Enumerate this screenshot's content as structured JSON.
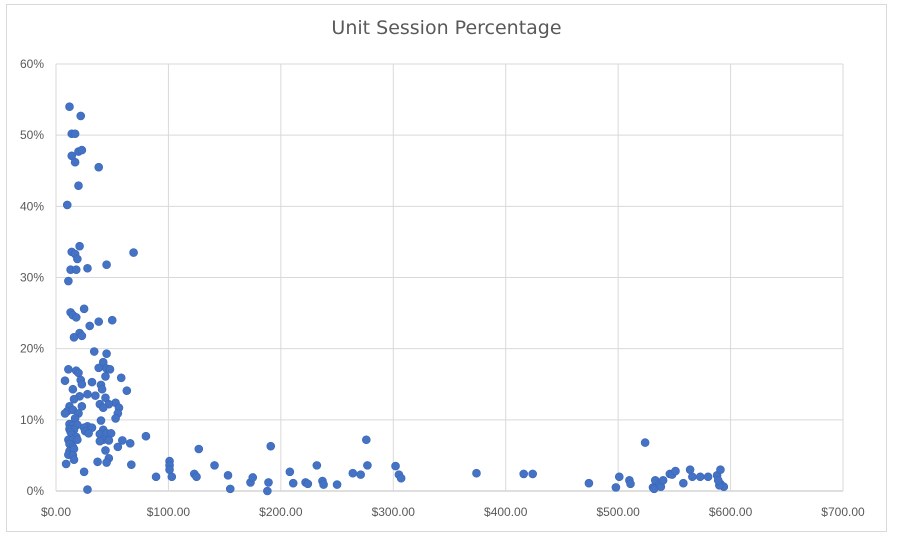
{
  "chart_data": {
    "type": "scatter",
    "title": "Unit Session Percentage",
    "xlabel": "",
    "ylabel": "",
    "xlim": [
      0,
      700
    ],
    "ylim": [
      0,
      0.6
    ],
    "x_ticks": [
      "$0.00",
      "$100.00",
      "$200.00",
      "$300.00",
      "$400.00",
      "$500.00",
      "$600.00",
      "$700.00"
    ],
    "y_ticks": [
      "0%",
      "10%",
      "20%",
      "30%",
      "40%",
      "50%",
      "60%"
    ],
    "grid": true,
    "legend": "none",
    "marker_color": "#4472c4",
    "points": [
      [
        12,
        0.54
      ],
      [
        22,
        0.527
      ],
      [
        14,
        0.502
      ],
      [
        17,
        0.502
      ],
      [
        20,
        0.477
      ],
      [
        23,
        0.479
      ],
      [
        14,
        0.471
      ],
      [
        17,
        0.462
      ],
      [
        38,
        0.455
      ],
      [
        20,
        0.429
      ],
      [
        10,
        0.402
      ],
      [
        21,
        0.344
      ],
      [
        14,
        0.336
      ],
      [
        17,
        0.333
      ],
      [
        69,
        0.335
      ],
      [
        19,
        0.326
      ],
      [
        13,
        0.311
      ],
      [
        18,
        0.311
      ],
      [
        28,
        0.313
      ],
      [
        45,
        0.318
      ],
      [
        11,
        0.295
      ],
      [
        25,
        0.256
      ],
      [
        13,
        0.251
      ],
      [
        15,
        0.247
      ],
      [
        18,
        0.244
      ],
      [
        30,
        0.232
      ],
      [
        38,
        0.238
      ],
      [
        50,
        0.24
      ],
      [
        21,
        0.222
      ],
      [
        16,
        0.216
      ],
      [
        23,
        0.218
      ],
      [
        34,
        0.196
      ],
      [
        45,
        0.193
      ],
      [
        42,
        0.181
      ],
      [
        38,
        0.173
      ],
      [
        45,
        0.172
      ],
      [
        48,
        0.171
      ],
      [
        11,
        0.171
      ],
      [
        18,
        0.169
      ],
      [
        20,
        0.166
      ],
      [
        44,
        0.161
      ],
      [
        58,
        0.159
      ],
      [
        8,
        0.155
      ],
      [
        22,
        0.156
      ],
      [
        32,
        0.153
      ],
      [
        23,
        0.15
      ],
      [
        40,
        0.149
      ],
      [
        63,
        0.141
      ],
      [
        15,
        0.143
      ],
      [
        41,
        0.143
      ],
      [
        28,
        0.136
      ],
      [
        21,
        0.133
      ],
      [
        35,
        0.134
      ],
      [
        44,
        0.131
      ],
      [
        16,
        0.129
      ],
      [
        53,
        0.124
      ],
      [
        39,
        0.122
      ],
      [
        47,
        0.122
      ],
      [
        56,
        0.117
      ],
      [
        12,
        0.119
      ],
      [
        23,
        0.119
      ],
      [
        42,
        0.117
      ],
      [
        10,
        0.112
      ],
      [
        15,
        0.114
      ],
      [
        20,
        0.109
      ],
      [
        8,
        0.109
      ],
      [
        55,
        0.109
      ],
      [
        53,
        0.102
      ],
      [
        17,
        0.102
      ],
      [
        40,
        0.099
      ],
      [
        12,
        0.094
      ],
      [
        15,
        0.092
      ],
      [
        19,
        0.093
      ],
      [
        28,
        0.091
      ],
      [
        25,
        0.089
      ],
      [
        32,
        0.089
      ],
      [
        12,
        0.087
      ],
      [
        16,
        0.086
      ],
      [
        26,
        0.084
      ],
      [
        42,
        0.086
      ],
      [
        13,
        0.083
      ],
      [
        29,
        0.081
      ],
      [
        39,
        0.08
      ],
      [
        45,
        0.081
      ],
      [
        49,
        0.081
      ],
      [
        14,
        0.079
      ],
      [
        18,
        0.076
      ],
      [
        80,
        0.077
      ],
      [
        11,
        0.072
      ],
      [
        15,
        0.072
      ],
      [
        19,
        0.072
      ],
      [
        42,
        0.072
      ],
      [
        39,
        0.07
      ],
      [
        47,
        0.071
      ],
      [
        59,
        0.071
      ],
      [
        66,
        0.067
      ],
      [
        12,
        0.066
      ],
      [
        15,
        0.062
      ],
      [
        44,
        0.057
      ],
      [
        55,
        0.062
      ],
      [
        12,
        0.056
      ],
      [
        16,
        0.059
      ],
      [
        11,
        0.051
      ],
      [
        15,
        0.05
      ],
      [
        47,
        0.046
      ],
      [
        16,
        0.044
      ],
      [
        9,
        0.038
      ],
      [
        37,
        0.041
      ],
      [
        45,
        0.04
      ],
      [
        67,
        0.037
      ],
      [
        25,
        0.027
      ],
      [
        28,
        0.002
      ],
      [
        101,
        0.042
      ],
      [
        101,
        0.036
      ],
      [
        101,
        0.03
      ],
      [
        103,
        0.02
      ],
      [
        89,
        0.02
      ],
      [
        123,
        0.024
      ],
      [
        125,
        0.02
      ],
      [
        127,
        0.059
      ],
      [
        141,
        0.036
      ],
      [
        153,
        0.022
      ],
      [
        155,
        0.003
      ],
      [
        173,
        0.012
      ],
      [
        175,
        0.019
      ],
      [
        188,
        0.0
      ],
      [
        189,
        0.012
      ],
      [
        191,
        0.063
      ],
      [
        208,
        0.027
      ],
      [
        211,
        0.011
      ],
      [
        222,
        0.012
      ],
      [
        224,
        0.01
      ],
      [
        232,
        0.036
      ],
      [
        237,
        0.014
      ],
      [
        238,
        0.009
      ],
      [
        250,
        0.009
      ],
      [
        264,
        0.025
      ],
      [
        271,
        0.023
      ],
      [
        276,
        0.072
      ],
      [
        277,
        0.036
      ],
      [
        302,
        0.035
      ],
      [
        305,
        0.023
      ],
      [
        307,
        0.018
      ],
      [
        374,
        0.025
      ],
      [
        416,
        0.024
      ],
      [
        424,
        0.024
      ],
      [
        474,
        0.011
      ],
      [
        498,
        0.005
      ],
      [
        501,
        0.02
      ],
      [
        510,
        0.015
      ],
      [
        511,
        0.01
      ],
      [
        524,
        0.068
      ],
      [
        531,
        0.005
      ],
      [
        532,
        0.003
      ],
      [
        533,
        0.015
      ],
      [
        537,
        0.01
      ],
      [
        538,
        0.006
      ],
      [
        540,
        0.015
      ],
      [
        546,
        0.024
      ],
      [
        548,
        0.023
      ],
      [
        551,
        0.028
      ],
      [
        558,
        0.011
      ],
      [
        564,
        0.03
      ],
      [
        566,
        0.02
      ],
      [
        573,
        0.02
      ],
      [
        580,
        0.02
      ],
      [
        588,
        0.022
      ],
      [
        591,
        0.03
      ],
      [
        591,
        0.01
      ],
      [
        594,
        0.006
      ],
      [
        590,
        0.008
      ],
      [
        589,
        0.015
      ]
    ]
  }
}
